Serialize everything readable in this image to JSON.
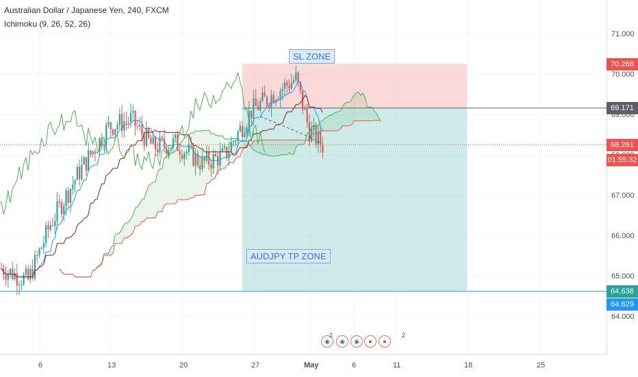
{
  "header": {
    "title": "Australian Dollar / Japanese Yen, 240, FXCM",
    "indicator": "Ichimoku (9, 26, 52, 26)"
  },
  "annotations": {
    "sl_zone": "SL ZONE",
    "tp_zone": "AUDJPY TP ZONE"
  },
  "price_axis": {
    "ticks": [
      "71.000",
      "70.000",
      "69.000",
      "68.000",
      "67.000",
      "66.000",
      "65.000",
      "64.000"
    ]
  },
  "price_tags": {
    "sl": {
      "text": "70.268",
      "color": "#ef5350"
    },
    "entry": {
      "text": "69.171",
      "color": "#5d6069"
    },
    "current": {
      "text": "68.261",
      "color": "#ef5350"
    },
    "countdown": {
      "text": "01:55:32",
      "color": "#ef5350"
    },
    "tp": {
      "text": "64.638",
      "color": "#26a69a"
    },
    "line": {
      "text": "64.629",
      "color": "#2196f3"
    }
  },
  "time_axis": {
    "ticks": [
      "6",
      "13",
      "20",
      "27",
      "May",
      "6",
      "11",
      "18",
      "25"
    ]
  },
  "events": [
    {
      "icon": "au-flag-icon",
      "count": "2"
    },
    {
      "icon": "au-flag-icon",
      "count": ""
    },
    {
      "icon": "au-flag-icon",
      "count": ""
    },
    {
      "icon": "jp-flag-icon",
      "count": ""
    },
    {
      "icon": "jp-flag-icon",
      "count": "2"
    }
  ],
  "colors": {
    "bull": "#26a69a",
    "bear": "#ef5350",
    "tenkan": "#2196f3",
    "kijun": "#8b1c1c",
    "span_a": "#4caf50",
    "span_b": "#ef5350",
    "lagging": "#4caf50"
  },
  "chart_data": {
    "type": "candlestick",
    "symbol": "AUDJPY",
    "timeframe": "240",
    "ylim": [
      63.6,
      71.8
    ],
    "x_ticks": [
      "6",
      "13",
      "20",
      "27",
      "May",
      "6",
      "11",
      "18",
      "25"
    ],
    "sl_price": 70.268,
    "entry_price": 69.171,
    "tp_price": 64.638,
    "current_price": 68.261,
    "horizontal_line": 64.629
  }
}
